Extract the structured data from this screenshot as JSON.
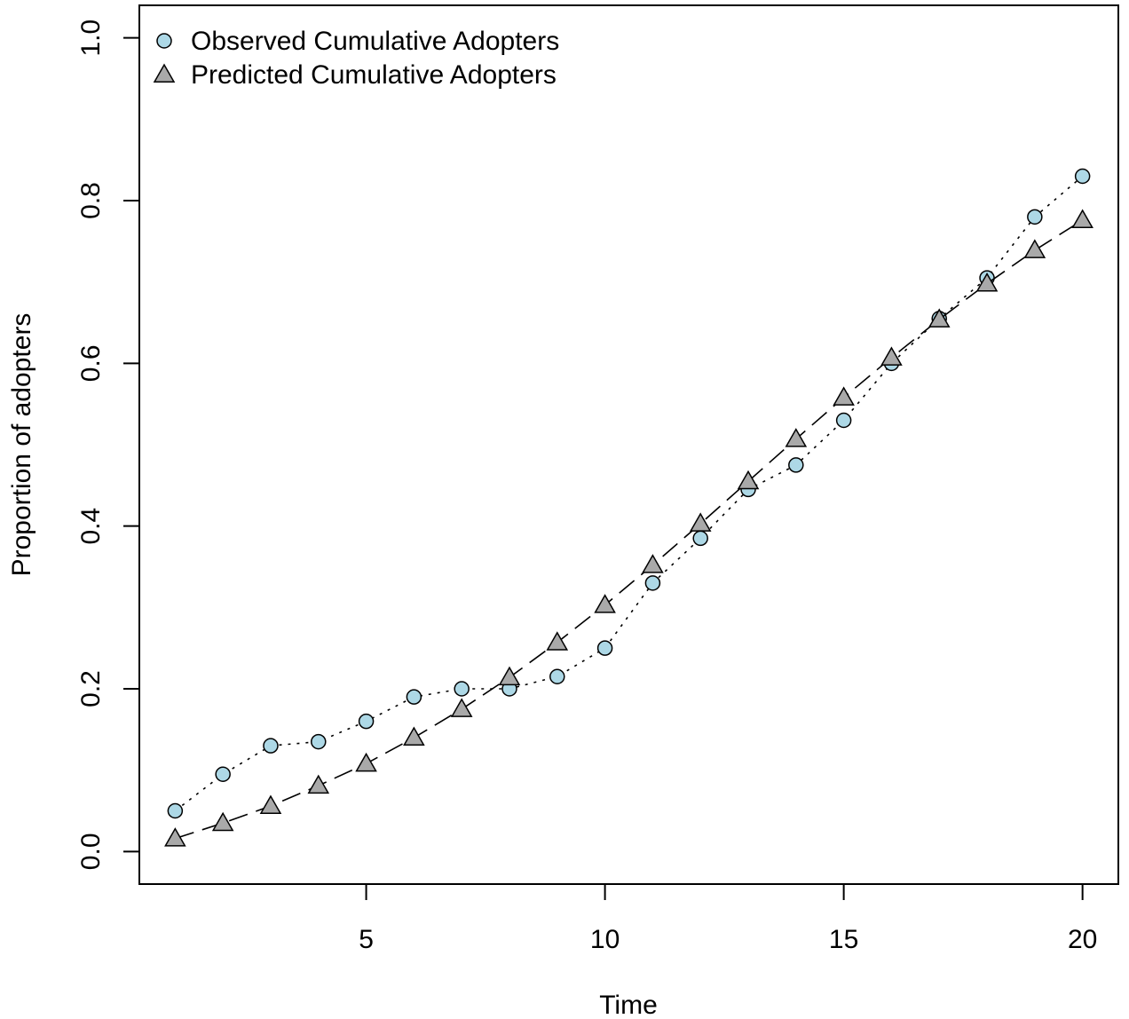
{
  "chart_data": {
    "type": "line",
    "title": "",
    "xlabel": "Time",
    "ylabel": "Proportion of adopters",
    "xlim": [
      0.25,
      20.75
    ],
    "ylim": [
      -0.04,
      1.04
    ],
    "x_ticks": [
      5,
      10,
      15,
      20
    ],
    "y_ticks": [
      0.0,
      0.2,
      0.4,
      0.6,
      0.8,
      1.0
    ],
    "x_tick_labels": [
      "5",
      "10",
      "15",
      "20"
    ],
    "y_tick_labels": [
      "0.0",
      "0.2",
      "0.4",
      "0.6",
      "0.8",
      "1.0"
    ],
    "grid": false,
    "legend_position": "top-left",
    "x": [
      1,
      2,
      3,
      4,
      5,
      6,
      7,
      8,
      9,
      10,
      11,
      12,
      13,
      14,
      15,
      16,
      17,
      18,
      19,
      20
    ],
    "series": [
      {
        "name": "Observed Cumulative Adopters",
        "marker": "circle",
        "line_style": "dotted",
        "fill": "#add8e6",
        "values": [
          0.05,
          0.095,
          0.13,
          0.135,
          0.16,
          0.19,
          0.2,
          0.2,
          0.215,
          0.25,
          0.33,
          0.385,
          0.445,
          0.475,
          0.53,
          0.6,
          0.655,
          0.705,
          0.78,
          0.83
        ]
      },
      {
        "name": "Predicted Cumulative Adopters",
        "marker": "triangle",
        "line_style": "dashed",
        "fill": "#a9a9a9",
        "values": [
          0.016,
          0.035,
          0.056,
          0.081,
          0.108,
          0.14,
          0.175,
          0.214,
          0.257,
          0.303,
          0.352,
          0.403,
          0.455,
          0.507,
          0.558,
          0.607,
          0.654,
          0.698,
          0.739,
          0.776
        ]
      }
    ]
  }
}
